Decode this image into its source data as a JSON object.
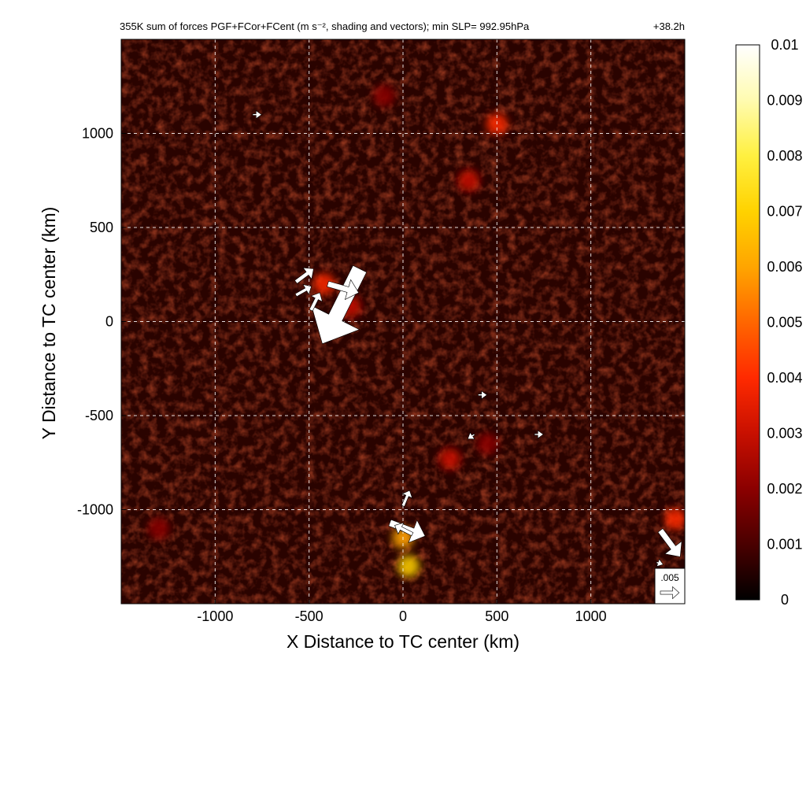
{
  "chart_data": {
    "type": "heatmap",
    "title": "355K sum of forces PGF+FCor+FCent (m s⁻², shading and vectors); min SLP= 992.95hPa",
    "time_label": "+38.2h",
    "xlabel": "X Distance to TC center (km)",
    "ylabel": "Y Distance to TC center (km)",
    "xlim": [
      -1500,
      1500
    ],
    "ylim": [
      -1500,
      1500
    ],
    "x_ticks": [
      -1000,
      -500,
      0,
      500,
      1000
    ],
    "y_ticks": [
      1000,
      500,
      0,
      -500,
      -1000
    ],
    "x_tick_labels": [
      "-1000",
      "-500",
      "0",
      "500",
      "1000"
    ],
    "y_tick_labels": [
      "1000",
      "500",
      "0",
      "-500",
      "-1000"
    ],
    "grid": true,
    "colorbar": {
      "min": 0,
      "max": 0.01,
      "tick_values": [
        0.01,
        0.009,
        0.008,
        0.007,
        0.006,
        0.005,
        0.004,
        0.003,
        0.002,
        0.001,
        0
      ],
      "tick_labels": [
        "0.01",
        "0.009",
        "0.008",
        "0.007",
        "0.006",
        "0.005",
        "0.004",
        "0.003",
        "0.002",
        "0.001",
        "0"
      ],
      "colors": [
        "#000000",
        "#4a0000",
        "#8b0000",
        "#c81000",
        "#ff2a00",
        "#ff6600",
        "#ffa500",
        "#ffd200",
        "#fff040",
        "#fffbb0",
        "#ffffff"
      ]
    },
    "reference_vector": {
      "label": ".005",
      "magnitude": 0.005
    },
    "hotspots": [
      {
        "x": -420,
        "y": 200,
        "value": 0.004
      },
      {
        "x": -280,
        "y": 80,
        "value": 0.003
      },
      {
        "x": 0,
        "y": -1150,
        "value": 0.006
      },
      {
        "x": 30,
        "y": -1300,
        "value": 0.007
      },
      {
        "x": 500,
        "y": 1050,
        "value": 0.004
      },
      {
        "x": 350,
        "y": 750,
        "value": 0.003
      },
      {
        "x": 1450,
        "y": -1050,
        "value": 0.004
      },
      {
        "x": 250,
        "y": -730,
        "value": 0.003
      },
      {
        "x": 450,
        "y": -650,
        "value": 0.002
      },
      {
        "x": -100,
        "y": 1200,
        "value": 0.002
      },
      {
        "x": -1300,
        "y": -1100,
        "value": 0.002
      }
    ],
    "vectors": [
      {
        "x": -230,
        "y": 280,
        "u": -0.0034,
        "v": -0.0068
      },
      {
        "x": -400,
        "y": 200,
        "u": 0.0028,
        "v": -0.0008
      },
      {
        "x": -570,
        "y": 210,
        "u": 0.0016,
        "v": 0.0012
      },
      {
        "x": -570,
        "y": 140,
        "u": 0.0014,
        "v": 0.0008
      },
      {
        "x": -490,
        "y": 60,
        "u": 0.0008,
        "v": 0.0016
      },
      {
        "x": 0,
        "y": -980,
        "u": 0.0006,
        "v": 0.0014
      },
      {
        "x": -70,
        "y": -1070,
        "u": 0.0032,
        "v": -0.0012
      },
      {
        "x": 50,
        "y": -1130,
        "u": -0.0016,
        "v": 0.0008
      },
      {
        "x": 1370,
        "y": -1110,
        "u": 0.0018,
        "v": -0.0024
      },
      {
        "x": 400,
        "y": -390,
        "u": 0.0008,
        "v": 0
      },
      {
        "x": 380,
        "y": -600,
        "u": -0.0006,
        "v": -0.0004
      },
      {
        "x": 700,
        "y": -600,
        "u": 0.0008,
        "v": 0
      },
      {
        "x": -800,
        "y": 1100,
        "u": 0.0008,
        "v": 0
      },
      {
        "x": 1350,
        "y": -1280,
        "u": 0.0006,
        "v": -0.0002
      }
    ]
  }
}
